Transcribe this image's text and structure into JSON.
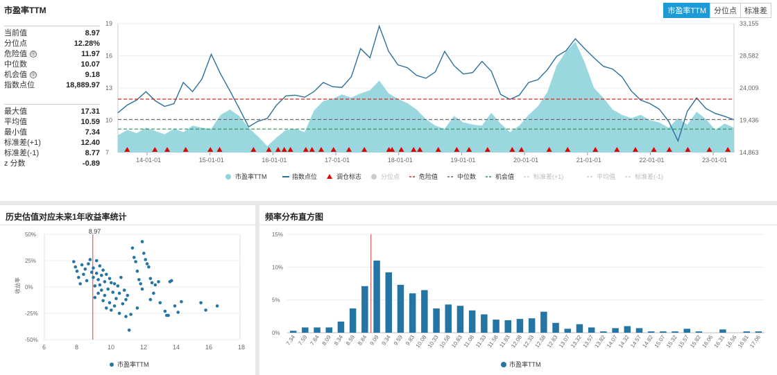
{
  "header": {
    "title": "市盈率TTM",
    "tabs": [
      {
        "label": "市盈率TTM",
        "active": true
      },
      {
        "label": "分位点",
        "active": false
      },
      {
        "label": "标准差",
        "active": false
      }
    ]
  },
  "stats_top": [
    {
      "label": "当前值",
      "value": "8.97",
      "info": false
    },
    {
      "label": "分位点",
      "value": "12.28%",
      "info": false
    },
    {
      "label": "危险值",
      "value": "11.97",
      "info": true
    },
    {
      "label": "中位数",
      "value": "10.07",
      "info": false
    },
    {
      "label": "机会值",
      "value": "9.18",
      "info": true
    },
    {
      "label": "指数点位",
      "value": "18,889.97",
      "info": false
    }
  ],
  "stats_bottom": [
    {
      "label": "最大值",
      "value": "17.31"
    },
    {
      "label": "平均值",
      "value": "10.59"
    },
    {
      "label": "最小值",
      "value": "7.34"
    },
    {
      "label": "标准差(+1)",
      "value": "12.40"
    },
    {
      "label": "标准差(-1)",
      "value": "8.77"
    },
    {
      "label": "z 分数",
      "value": "-0.89"
    }
  ],
  "colors": {
    "area": "#8fd3dc",
    "index_line": "#2a6f9b",
    "danger": "#c62828",
    "median": "#666666",
    "opportunity": "#2e8b57",
    "marker": "#e00000",
    "bar": "#2475a3",
    "scatter": "#2475a3",
    "current_line": "#e53935"
  },
  "chart_data": [
    {
      "type": "line",
      "x": [
        "14-01-01",
        "15-01-01",
        "16-01-01",
        "17-01-01",
        "18-01-01",
        "19-01-01",
        "20-01-01",
        "21-01-01",
        "22-01-01",
        "23-01-01"
      ],
      "ylim": [
        7,
        19
      ],
      "yticks": [
        "7",
        "10",
        "13",
        "16",
        "19"
      ],
      "y2lim": [
        14863,
        33155
      ],
      "y2ticks": [
        "14,863",
        "19,436",
        "24,009",
        "28,582",
        "33,155"
      ],
      "pe_series": [
        8.6,
        9.1,
        8.8,
        9.3,
        9.0,
        8.7,
        9.2,
        8.9,
        9.5,
        9.3,
        9.2,
        10.5,
        11.0,
        10.4,
        9.3,
        8.5,
        7.6,
        8.4,
        9.1,
        9.2,
        8.9,
        10.9,
        11.8,
        12.0,
        12.4,
        12.1,
        12.5,
        12.8,
        13.7,
        12.5,
        12.0,
        11.6,
        11.0,
        10.1,
        9.5,
        9.2,
        10.4,
        9.8,
        9.6,
        9.5,
        10.7,
        9.7,
        8.9,
        9.5,
        10.5,
        11.3,
        12.6,
        15.1,
        16.4,
        17.3,
        15.4,
        13.0,
        12.1,
        11.0,
        10.5,
        10.2,
        10.5,
        10.0,
        9.8,
        9.3,
        10.2,
        9.6,
        10.8,
        10.1,
        9.1,
        9.7,
        9.3
      ],
      "index_series": [
        20500,
        21600,
        22300,
        23500,
        22200,
        21400,
        21800,
        24800,
        23500,
        25300,
        28800,
        26000,
        23600,
        21100,
        18500,
        19300,
        19700,
        21600,
        22900,
        23000,
        22700,
        23500,
        24800,
        24200,
        24100,
        25600,
        29600,
        28300,
        32800,
        29200,
        27300,
        26900,
        25800,
        25400,
        26300,
        29200,
        27200,
        26000,
        26200,
        27800,
        26400,
        23100,
        22400,
        23000,
        24800,
        25200,
        26600,
        28500,
        29300,
        31000,
        29600,
        28300,
        27100,
        26700,
        25600,
        23600,
        22300,
        21800,
        21000,
        19300,
        16500,
        20700,
        22600,
        21100,
        20400,
        20000,
        19500
      ],
      "danger": 11.97,
      "median": 10.07,
      "opportunity": 9.18,
      "markers_x": [
        0.03,
        0.12,
        0.16,
        0.22,
        0.3,
        0.33,
        0.44,
        0.49,
        0.52,
        0.54,
        0.56,
        0.61,
        0.63,
        0.66,
        0.7,
        0.75,
        0.8,
        0.88,
        0.89,
        0.92,
        0.96,
        0.98,
        1.04,
        1.1,
        1.14,
        1.2,
        1.28,
        1.31,
        1.4,
        1.46,
        1.55,
        1.62,
        1.68,
        1.74,
        1.79,
        1.85,
        1.92,
        1.98
      ],
      "legend": [
        "市盈率TTM",
        "指数点位",
        "调仓标志",
        "分位点",
        "危险值",
        "中位数",
        "机会值",
        "标准差(+1)",
        "平均值",
        "标准差(-1)"
      ]
    },
    {
      "type": "scatter",
      "title": "历史估值对应未来1年收益率统计",
      "xlim": [
        6,
        18
      ],
      "xticks": [
        "6",
        "8",
        "10",
        "12",
        "14",
        "16",
        "18"
      ],
      "ylim": [
        -50,
        50
      ],
      "yticks": [
        "50%",
        "25%",
        "0%",
        "-25%",
        "-50%"
      ],
      "ylabel": "收益率",
      "current_x": 8.97,
      "current_label": "8.97",
      "legend": "市盈率TTM",
      "points": [
        [
          7.8,
          24
        ],
        [
          7.9,
          19
        ],
        [
          8.0,
          15
        ],
        [
          8.1,
          9
        ],
        [
          8.2,
          3
        ],
        [
          8.3,
          21
        ],
        [
          8.4,
          12
        ],
        [
          8.5,
          17
        ],
        [
          8.6,
          6
        ],
        [
          8.7,
          22
        ],
        [
          8.8,
          26
        ],
        [
          8.9,
          14
        ],
        [
          9.0,
          18
        ],
        [
          9.0,
          9
        ],
        [
          9.1,
          1
        ],
        [
          9.1,
          -10
        ],
        [
          9.2,
          25
        ],
        [
          9.2,
          13
        ],
        [
          9.3,
          7
        ],
        [
          9.3,
          -6
        ],
        [
          9.4,
          20
        ],
        [
          9.4,
          2
        ],
        [
          9.5,
          11
        ],
        [
          9.5,
          -3
        ],
        [
          9.6,
          16
        ],
        [
          9.6,
          -13
        ],
        [
          9.7,
          5
        ],
        [
          9.7,
          -8
        ],
        [
          9.8,
          -20
        ],
        [
          9.8,
          12
        ],
        [
          9.9,
          -2
        ],
        [
          10.0,
          -15
        ],
        [
          10.0,
          8
        ],
        [
          10.1,
          -22
        ],
        [
          10.1,
          4
        ],
        [
          10.2,
          -5
        ],
        [
          10.3,
          -18
        ],
        [
          10.3,
          3
        ],
        [
          10.4,
          -11
        ],
        [
          10.5,
          1
        ],
        [
          10.6,
          -25
        ],
        [
          10.6,
          -6
        ],
        [
          10.7,
          9
        ],
        [
          10.8,
          -16
        ],
        [
          10.9,
          -3
        ],
        [
          11.0,
          -28
        ],
        [
          11.0,
          -12
        ],
        [
          11.1,
          -8
        ],
        [
          11.2,
          -41
        ],
        [
          11.3,
          -26
        ],
        [
          11.4,
          37
        ],
        [
          11.5,
          28
        ],
        [
          11.6,
          24
        ],
        [
          11.7,
          15
        ],
        [
          11.7,
          -20
        ],
        [
          11.8,
          7
        ],
        [
          11.9,
          3
        ],
        [
          12.0,
          43
        ],
        [
          12.0,
          -2
        ],
        [
          12.1,
          32
        ],
        [
          12.2,
          26
        ],
        [
          12.3,
          22
        ],
        [
          12.4,
          19
        ],
        [
          12.5,
          8
        ],
        [
          12.5,
          -12
        ],
        [
          12.6,
          4
        ],
        [
          12.7,
          -6
        ],
        [
          12.8,
          2
        ],
        [
          13.0,
          5
        ],
        [
          13.1,
          -15
        ],
        [
          13.4,
          -23
        ],
        [
          13.5,
          -27
        ],
        [
          13.6,
          -27
        ],
        [
          13.7,
          5
        ],
        [
          13.8,
          6
        ],
        [
          14.0,
          -18
        ],
        [
          14.2,
          -24
        ],
        [
          14.4,
          -14
        ],
        [
          15.6,
          -15
        ],
        [
          15.9,
          -22
        ],
        [
          16.6,
          -18
        ]
      ]
    },
    {
      "type": "bar",
      "title": "频率分布直方图",
      "categories": [
        "7.34",
        "7.59",
        "7.84",
        "8.09",
        "8.34",
        "8.59",
        "8.84",
        "9.09",
        "9.34",
        "9.59",
        "9.83",
        "10.08",
        "10.33",
        "10.58",
        "10.83",
        "11.08",
        "11.33",
        "11.58",
        "11.83",
        "12.08",
        "12.33",
        "12.58",
        "12.83",
        "13.07",
        "13.32",
        "13.57",
        "13.82",
        "14.07",
        "14.32",
        "14.57",
        "14.82",
        "15.07",
        "15.32",
        "15.57",
        "15.82",
        "16.06",
        "16.31",
        "16.56",
        "16.81",
        "17.06"
      ],
      "values": [
        0.3,
        0.8,
        0.8,
        0.8,
        1.7,
        3.7,
        7.1,
        11.0,
        9.2,
        7.3,
        6.0,
        6.5,
        3.7,
        4.3,
        4.1,
        3.4,
        2.8,
        2.0,
        1.9,
        2.1,
        2.2,
        3.2,
        1.5,
        0.6,
        1.3,
        0.8,
        0.2,
        0.7,
        1.0,
        0.7,
        0.2,
        0.2,
        0.2,
        0.6,
        0.2,
        0.0,
        0.5,
        0.0,
        0.2,
        0.2
      ],
      "ylim": [
        0,
        15
      ],
      "yticks": [
        "15%",
        "10%",
        "5%",
        "0%"
      ],
      "current_x": 8.97,
      "legend": "市盈率TTM"
    }
  ]
}
